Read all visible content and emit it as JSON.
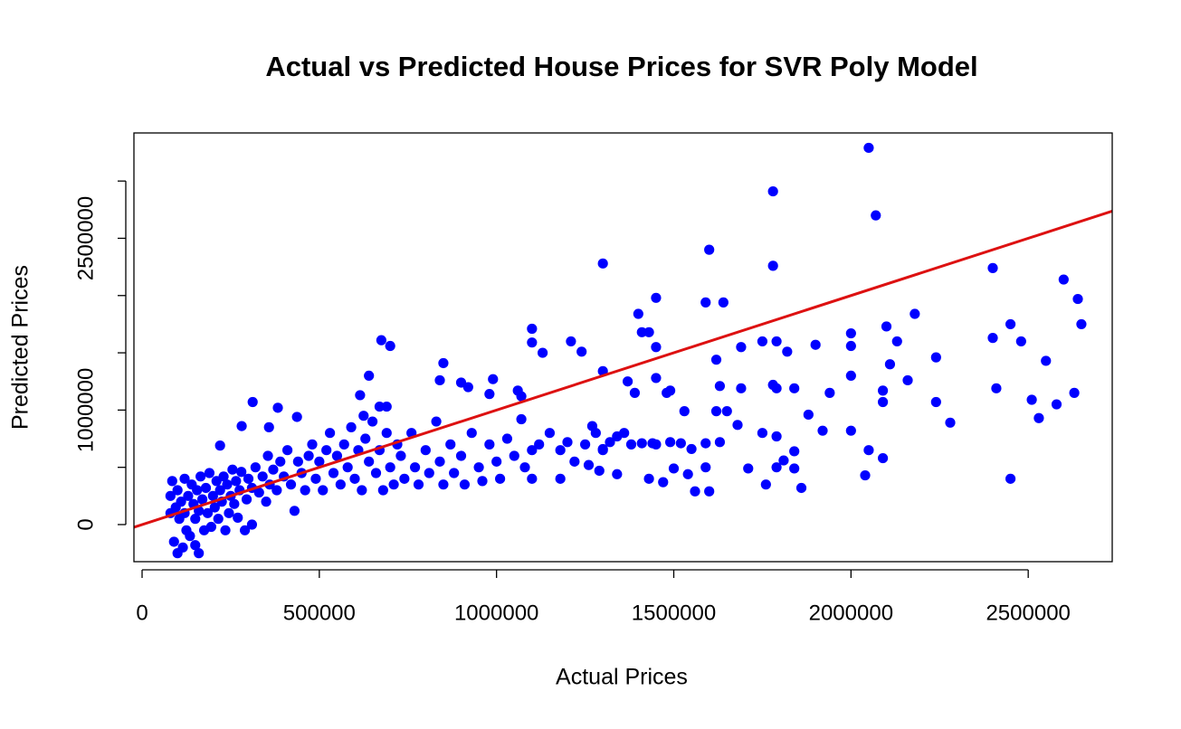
{
  "chart_data": {
    "type": "scatter",
    "title": "Actual vs Predicted House Prices for SVR Poly Model",
    "x_label": "Actual Prices",
    "y_label": "Predicted Prices",
    "color": "#0000ff",
    "xlim": [
      -23000,
      2737000
    ],
    "ylim": [
      -324000,
      3420000
    ],
    "xticks": [
      0,
      500000,
      1000000,
      1500000,
      2000000,
      2500000
    ],
    "yticks": [
      0,
      {
        "value": 500000,
        "label": null
      },
      1000000,
      {
        "value": 1500000,
        "label": null
      },
      {
        "value": 2000000,
        "label": null
      },
      2500000,
      {
        "value": 3000000,
        "label": null
      }
    ],
    "reference_line": {
      "intercept": 0,
      "slope": 1,
      "color": "#dd1111"
    },
    "x": [
      2050000,
      1780000,
      2070000,
      1600000,
      1780000,
      1300000,
      2400000,
      2600000,
      1450000,
      2640000,
      1590000,
      1640000,
      1400000,
      2180000,
      1100000,
      2450000,
      2650000,
      675000,
      700000,
      1210000,
      2100000,
      2000000,
      2400000,
      1430000,
      1410000,
      1450000,
      1100000,
      1130000,
      1240000,
      2480000,
      2130000,
      2000000,
      2550000,
      2240000,
      1820000,
      1750000,
      1790000,
      1690000,
      1900000,
      1620000,
      2110000,
      2410000,
      2630000,
      2510000,
      2580000,
      2240000,
      2000000,
      1940000,
      2160000,
      2090000,
      2090000,
      2280000,
      2530000,
      2450000,
      2090000,
      2050000,
      2040000,
      1860000,
      1760000,
      1710000,
      1790000,
      1810000,
      1840000,
      1790000,
      1750000,
      1840000,
      1880000,
      2000000,
      1920000,
      1780000,
      1690000,
      1790000,
      1840000,
      1630000,
      1650000,
      1620000,
      1680000,
      1630000,
      1590000,
      1560000,
      1600000,
      1590000,
      1540000,
      1470000,
      1430000,
      1500000,
      1520000,
      1490000,
      1440000,
      1410000,
      1530000,
      1490000,
      1480000,
      1550000,
      1450000,
      1390000,
      1370000,
      1300000,
      1340000,
      1340000,
      1290000,
      1260000,
      1300000,
      1270000,
      1180000,
      1100000,
      1070000,
      1070000,
      1060000,
      990000,
      980000,
      850000,
      840000,
      900000,
      920000,
      640000,
      670000,
      690000,
      615000,
      625000,
      437000,
      383000,
      312000,
      281000,
      220000,
      358000,
      80000,
      80000,
      85000,
      90000,
      95000,
      100000,
      100000,
      105000,
      110000,
      115000,
      120000,
      120000,
      125000,
      130000,
      135000,
      140000,
      145000,
      150000,
      150000,
      155000,
      160000,
      160000,
      165000,
      170000,
      175000,
      180000,
      185000,
      190000,
      195000,
      200000,
      205000,
      210000,
      215000,
      220000,
      225000,
      230000,
      235000,
      240000,
      245000,
      250000,
      255000,
      260000,
      265000,
      270000,
      275000,
      280000,
      290000,
      295000,
      300000,
      310000,
      310000,
      320000,
      330000,
      340000,
      350000,
      355000,
      360000,
      370000,
      380000,
      390000,
      400000,
      410000,
      420000,
      430000,
      440000,
      450000,
      460000,
      470000,
      480000,
      490000,
      500000,
      510000,
      520000,
      530000,
      540000,
      550000,
      560000,
      570000,
      580000,
      590000,
      600000,
      610000,
      620000,
      630000,
      640000,
      650000,
      660000,
      670000,
      680000,
      690000,
      700000,
      710000,
      720000,
      730000,
      740000,
      760000,
      770000,
      780000,
      800000,
      810000,
      830000,
      840000,
      850000,
      870000,
      880000,
      900000,
      910000,
      930000,
      950000,
      960000,
      980000,
      1000000,
      1010000,
      1030000,
      1050000,
      1080000,
      1100000,
      1120000,
      1150000,
      1180000,
      1200000,
      1220000,
      1250000,
      1280000,
      1300000,
      1320000,
      1360000,
      1380000,
      1450000
    ],
    "values": [
      3290000,
      2910000,
      2700000,
      2400000,
      2260000,
      2280000,
      2240000,
      2140000,
      1980000,
      1970000,
      1940000,
      1940000,
      1840000,
      1840000,
      1710000,
      1750000,
      1750000,
      1610000,
      1560000,
      1600000,
      1730000,
      1670000,
      1630000,
      1680000,
      1680000,
      1550000,
      1590000,
      1500000,
      1510000,
      1600000,
      1600000,
      1560000,
      1430000,
      1460000,
      1510000,
      1600000,
      1600000,
      1550000,
      1570000,
      1440000,
      1400000,
      1190000,
      1150000,
      1090000,
      1050000,
      1070000,
      1300000,
      1150000,
      1260000,
      1070000,
      1170000,
      890000,
      930000,
      400000,
      580000,
      650000,
      430000,
      320000,
      350000,
      490000,
      500000,
      560000,
      490000,
      770000,
      800000,
      640000,
      960000,
      820000,
      820000,
      1220000,
      1190000,
      1190000,
      1190000,
      1210000,
      990000,
      990000,
      870000,
      720000,
      710000,
      290000,
      290000,
      500000,
      440000,
      370000,
      400000,
      490000,
      710000,
      720000,
      710000,
      710000,
      990000,
      1170000,
      1150000,
      660000,
      1280000,
      1150000,
      1250000,
      1340000,
      770000,
      440000,
      470000,
      520000,
      660000,
      860000,
      400000,
      400000,
      920000,
      1120000,
      1170000,
      1270000,
      1140000,
      1410000,
      1260000,
      1240000,
      1200000,
      1300000,
      1030000,
      1030000,
      1130000,
      950000,
      940000,
      1020000,
      1070000,
      860000,
      690000,
      850000,
      250000,
      100000,
      380000,
      -150000,
      150000,
      -250000,
      300000,
      50000,
      200000,
      -200000,
      400000,
      100000,
      -50000,
      250000,
      -100000,
      350000,
      180000,
      -180000,
      50000,
      300000,
      -250000,
      120000,
      420000,
      220000,
      -50000,
      320000,
      100000,
      450000,
      -20000,
      250000,
      150000,
      380000,
      50000,
      300000,
      200000,
      420000,
      -50000,
      350000,
      100000,
      250000,
      480000,
      180000,
      380000,
      60000,
      300000,
      460000,
      -50000,
      220000,
      400000,
      0,
      320000,
      500000,
      280000,
      420000,
      200000,
      600000,
      350000,
      480000,
      300000,
      550000,
      420000,
      650000,
      350000,
      120000,
      550000,
      450000,
      300000,
      600000,
      700000,
      400000,
      550000,
      300000,
      650000,
      800000,
      450000,
      600000,
      350000,
      700000,
      500000,
      850000,
      400000,
      650000,
      300000,
      750000,
      550000,
      900000,
      450000,
      650000,
      300000,
      800000,
      500000,
      350000,
      700000,
      600000,
      400000,
      800000,
      500000,
      350000,
      650000,
      450000,
      900000,
      550000,
      350000,
      700000,
      450000,
      600000,
      350000,
      800000,
      500000,
      380000,
      700000,
      550000,
      400000,
      750000,
      600000,
      500000,
      650000,
      700000,
      800000,
      650000,
      720000,
      550000,
      700000,
      800000,
      650000,
      720000,
      800000,
      700000,
      700000
    ]
  }
}
